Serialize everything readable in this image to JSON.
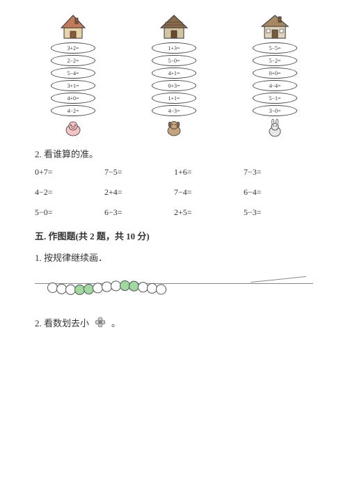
{
  "colors": {
    "text": "#333333",
    "border": "#444444",
    "bead_white": "#ffffff",
    "bead_green": "#9fd99f",
    "house1_roof": "#c17a5a",
    "house1_wall": "#e8d4a8",
    "house2_roof": "#8a6b4a",
    "house2_wall": "#d4c4a0",
    "house3_roof": "#a68860",
    "house3_wall": "#e0d4b8"
  },
  "houses": {
    "columns": [
      {
        "equations": [
          "3+2=",
          "2−2=",
          "5−4=",
          "3+1=",
          "4+0=",
          "4−2="
        ]
      },
      {
        "equations": [
          "1+3=",
          "5−0=",
          "4+1=",
          "0+3=",
          "1+1=",
          "4−3="
        ]
      },
      {
        "equations": [
          "5−5=",
          "5−2=",
          "0+0=",
          "4−4=",
          "5−1=",
          "3−0="
        ]
      }
    ]
  },
  "q2_label": "2. 看谁算的准。",
  "grid": [
    "0+7=",
    "7−5=",
    "1+6=",
    "7−3=",
    "4−2=",
    "2+4=",
    "7−4=",
    "6−4=",
    "5−0=",
    "6−3=",
    "2+5=",
    "5−3="
  ],
  "section5": "五. 作图题(共 2 题，共 10 分)",
  "q5_1": "1. 按规律继续画．",
  "beads_pattern": [
    "w",
    "w",
    "w",
    "g",
    "g",
    "w",
    "w",
    "w",
    "g",
    "g",
    "w",
    "w",
    "w"
  ],
  "q5_2_pre": "2. 看数划去小",
  "q5_2_post": "。"
}
